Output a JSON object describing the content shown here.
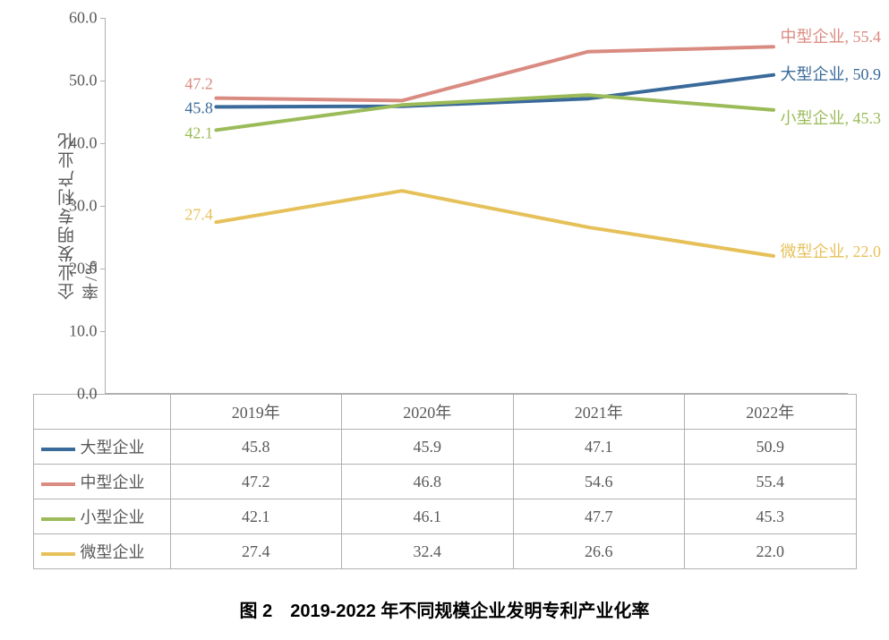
{
  "chart": {
    "type": "line",
    "ylabel": "企业发明专利产业化率/%",
    "ylim": [
      0,
      60
    ],
    "ytick_step": 10.0,
    "yticks_decimals": 1,
    "categories": [
      "2019年",
      "2020年",
      "2021年",
      "2022年"
    ],
    "x_positions_pct": [
      15,
      40,
      65,
      90
    ],
    "line_width": 4,
    "axis_color": "#b0b0b0",
    "text_color": "#595959",
    "background_color": "#ffffff",
    "label_fontsize": 18,
    "series": [
      {
        "name": "大型企业",
        "color": "#3a6a9a",
        "values": [
          45.8,
          45.9,
          47.1,
          50.9
        ]
      },
      {
        "name": "中型企业",
        "color": "#d98b81",
        "values": [
          47.2,
          46.8,
          54.6,
          55.4
        ]
      },
      {
        "name": "小型企业",
        "color": "#9bbb59",
        "values": [
          42.1,
          46.1,
          47.7,
          45.3
        ]
      },
      {
        "name": "微型企业",
        "color": "#e6c15a",
        "values": [
          27.4,
          32.4,
          26.6,
          22.0
        ]
      }
    ],
    "start_labels": [
      {
        "series": 1,
        "text": "47.2",
        "color": "#d98b81",
        "y_offset": -16
      },
      {
        "series": 0,
        "text": "45.8",
        "color": "#3a6a9a",
        "y_offset": 2
      },
      {
        "series": 2,
        "text": "42.1",
        "color": "#9bbb59",
        "y_offset": 4
      },
      {
        "series": 3,
        "text": "27.4",
        "color": "#e6c15a",
        "y_offset": -8
      }
    ],
    "end_labels": [
      {
        "series": 1,
        "text": "中型企业, 55.4",
        "color": "#d98b81",
        "y_offset": -12
      },
      {
        "series": 0,
        "text": "大型企业, 50.9",
        "color": "#3a6a9a",
        "y_offset": -2
      },
      {
        "series": 2,
        "text": "小型企业, 45.3",
        "color": "#9bbb59",
        "y_offset": 8
      },
      {
        "series": 3,
        "text": "微型企业, 22.0",
        "color": "#e6c15a",
        "y_offset": -6
      }
    ]
  },
  "caption": "图 2　2019-2022 年不同规模企业发明专利产业化率"
}
